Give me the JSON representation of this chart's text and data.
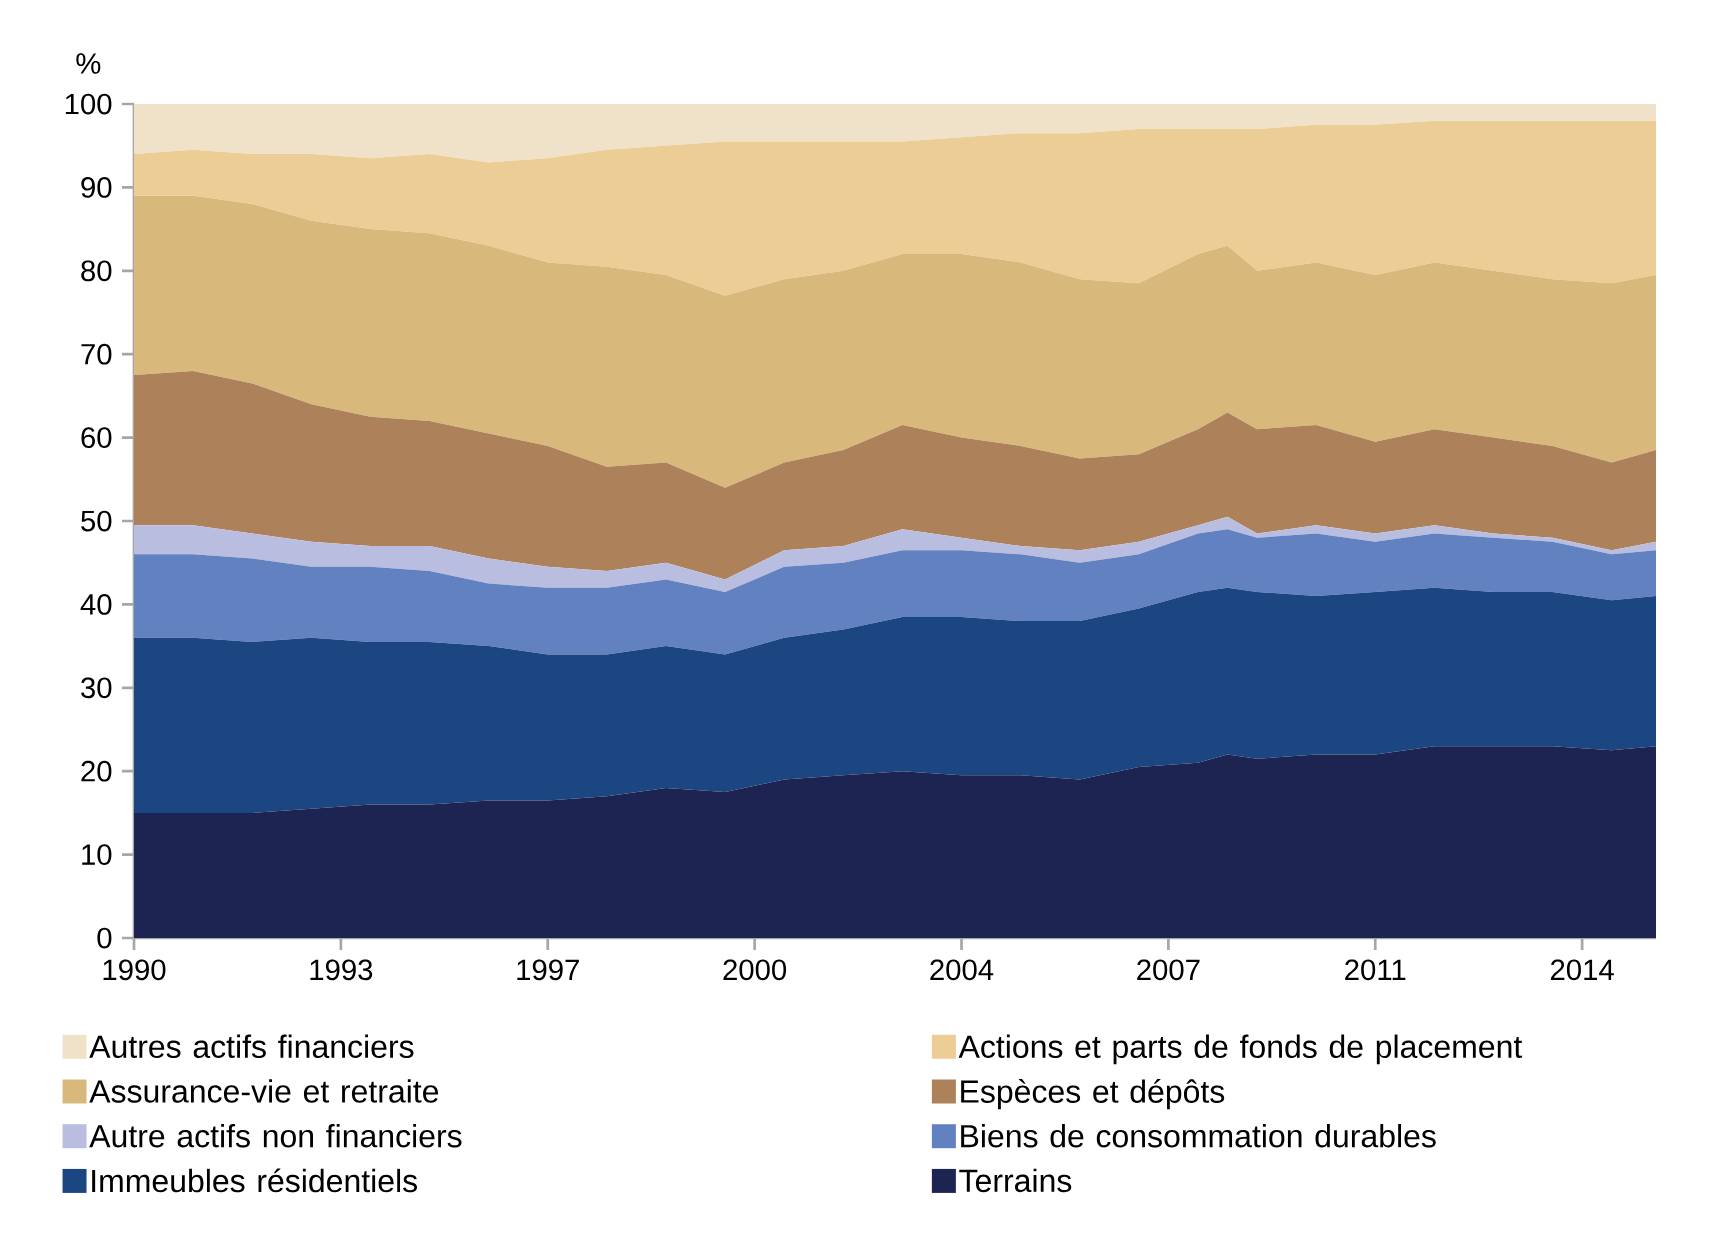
{
  "chart_data": {
    "type": "area",
    "stacked": true,
    "ylabel": "%",
    "legend": "bottom",
    "grid": false,
    "x": [
      1990,
      1991,
      1992,
      1993,
      1994,
      1995,
      1996,
      1997,
      1998,
      1999,
      2000,
      2001,
      2002,
      2003,
      2004,
      2005,
      2006,
      2007,
      2008,
      2008.5,
      2009,
      2010,
      2011,
      2012,
      2013,
      2014,
      2015,
      2015.75
    ],
    "xlim": [
      1990,
      2015.75
    ],
    "xticks": [
      1990,
      {
        "value": 1993.5,
        "label": "1993"
      },
      1997,
      {
        "value": 2000.5,
        "label": "2000"
      },
      2004,
      {
        "value": 2007.5,
        "label": "2007"
      },
      2011,
      {
        "value": 2014.5,
        "label": "2014"
      }
    ],
    "ylim": [
      0,
      100
    ],
    "yticks": [
      0,
      10,
      20,
      30,
      40,
      50,
      60,
      70,
      80,
      90,
      100
    ],
    "series": [
      {
        "name": "Terrains",
        "color": "#1e2452",
        "values": [
          15,
          15,
          15,
          15.5,
          16,
          16,
          16.5,
          16.5,
          17,
          18,
          17.5,
          19,
          19.5,
          20,
          19.5,
          19.5,
          19,
          20.5,
          21,
          22,
          21.5,
          22,
          22,
          23,
          23,
          23,
          22.5,
          23
        ]
      },
      {
        "name": "Immeubles résidentiels",
        "color": "#1c4682",
        "values": [
          21,
          21,
          20.5,
          20.5,
          19.5,
          19.5,
          18.5,
          17.5,
          17,
          17,
          16.5,
          17,
          17.5,
          18.5,
          19,
          18.5,
          19,
          19,
          20.5,
          20,
          20,
          19,
          19.5,
          19,
          18.5,
          18.5,
          18,
          18
        ]
      },
      {
        "name": "Biens de consommation durables",
        "color": "#6281c0",
        "values": [
          10,
          10,
          10,
          8.5,
          9,
          8.5,
          7.5,
          8,
          8,
          8,
          7.5,
          8.5,
          8,
          8,
          8,
          8,
          7,
          6.5,
          7,
          7,
          6.5,
          7.5,
          6,
          6.5,
          6.5,
          6,
          5.5,
          5.5
        ]
      },
      {
        "name": "Autre actifs non financiers",
        "color": "#b9bde0",
        "values": [
          3.5,
          3.5,
          3,
          3,
          2.5,
          3,
          3,
          2.5,
          2,
          2,
          1.5,
          2,
          2,
          2.5,
          1.5,
          1,
          1.5,
          1.5,
          1,
          1.5,
          0.5,
          1,
          1,
          1,
          0.5,
          0.5,
          0.5,
          1
        ]
      },
      {
        "name": "Espèces et dépôts",
        "color": "#ad825b",
        "values": [
          18,
          18.5,
          18,
          16.5,
          15.5,
          15,
          15,
          14.5,
          12.5,
          12,
          11,
          10.5,
          11.5,
          12.5,
          12,
          12,
          11,
          10.5,
          11.5,
          12.5,
          12.5,
          12,
          11,
          11.5,
          11.5,
          11,
          10.5,
          11
        ]
      },
      {
        "name": "Assurance-vie et retraite",
        "color": "#d8b97b",
        "values": [
          21.5,
          21,
          21.5,
          22,
          22.5,
          22.5,
          22.5,
          22,
          24,
          22.5,
          23,
          22,
          21.5,
          20.5,
          22,
          22,
          21.5,
          20.5,
          21,
          20,
          19,
          19.5,
          20,
          20,
          20,
          20,
          21.5,
          21
        ]
      },
      {
        "name": "Actions et parts de fonds de placement",
        "color": "#ebcd95",
        "values": [
          5,
          5.5,
          6,
          8,
          8.5,
          9.5,
          10,
          12.5,
          14,
          15.5,
          18.5,
          16.5,
          15.5,
          13.5,
          14,
          15.5,
          17.5,
          18.5,
          15,
          14,
          17,
          16.5,
          18,
          17,
          18,
          19,
          19.5,
          18.5
        ]
      },
      {
        "name": "Autres actifs financiers",
        "color": "#f0e2c8",
        "values": [
          6,
          5.5,
          6,
          6,
          6.5,
          6,
          7,
          6.5,
          5.5,
          5,
          4.5,
          4.5,
          4.5,
          4.5,
          4,
          3.5,
          3.5,
          3,
          3,
          3,
          3,
          2.5,
          2.5,
          2,
          2,
          2,
          2,
          2
        ]
      }
    ]
  }
}
